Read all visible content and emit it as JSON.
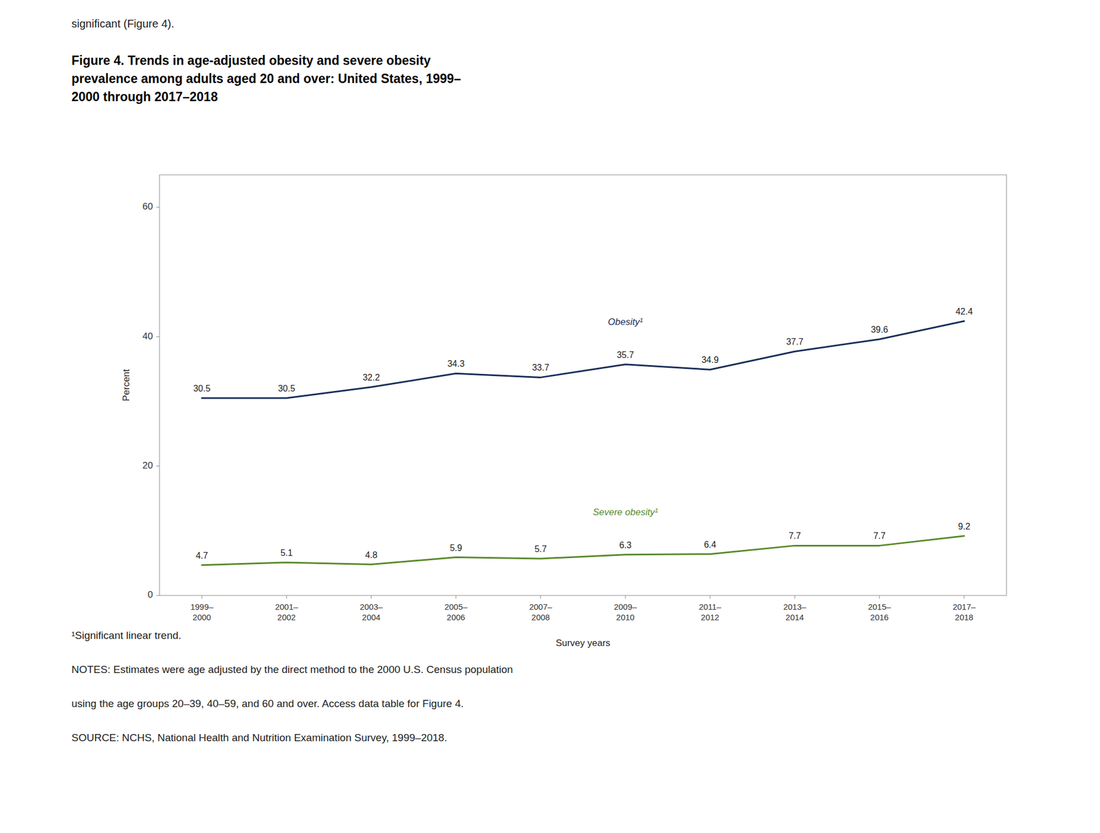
{
  "chart_data": {
    "type": "line",
    "top_text": "significant (Figure 4).",
    "title": "Figure 4. Trends in age-adjusted obesity and severe obesity\nprevalence among adults aged 20 and over: United States, 1999–\n2000 through 2017–2018",
    "categories": [
      "1999–\n2000",
      "2001–\n2002",
      "2003–\n2004",
      "2005–\n2006",
      "2007–\n2008",
      "2009–\n2010",
      "2011–\n2012",
      "2013–\n2014",
      "2015–\n2016",
      "2017–\n2018"
    ],
    "series": [
      {
        "name": "Obesity¹",
        "color": "#1a2e5a",
        "values": [
          30.5,
          30.5,
          32.2,
          34.3,
          33.7,
          35.7,
          34.9,
          37.7,
          39.6,
          42.4
        ]
      },
      {
        "name": "Severe obesity¹",
        "color": "#5a8a2a",
        "values": [
          4.7,
          5.1,
          4.8,
          5.9,
          5.7,
          6.3,
          6.4,
          7.7,
          7.7,
          9.2
        ]
      }
    ],
    "xlabel": "Survey years",
    "ylabel": "Percent",
    "ylim": [
      0,
      65
    ],
    "yticks": [
      0,
      20,
      40,
      60
    ],
    "grid": false,
    "data_labels": true,
    "footnotes": [
      "¹Significant linear trend.",
      "NOTES: Estimates were age adjusted by the direct method to the 2000 U.S. Census population",
      "using the age groups 20–39, 40–59, and 60 and over. Access data table for Figure 4.",
      "SOURCE: NCHS, National Health and Nutrition Examination Survey, 1999–2018."
    ]
  }
}
